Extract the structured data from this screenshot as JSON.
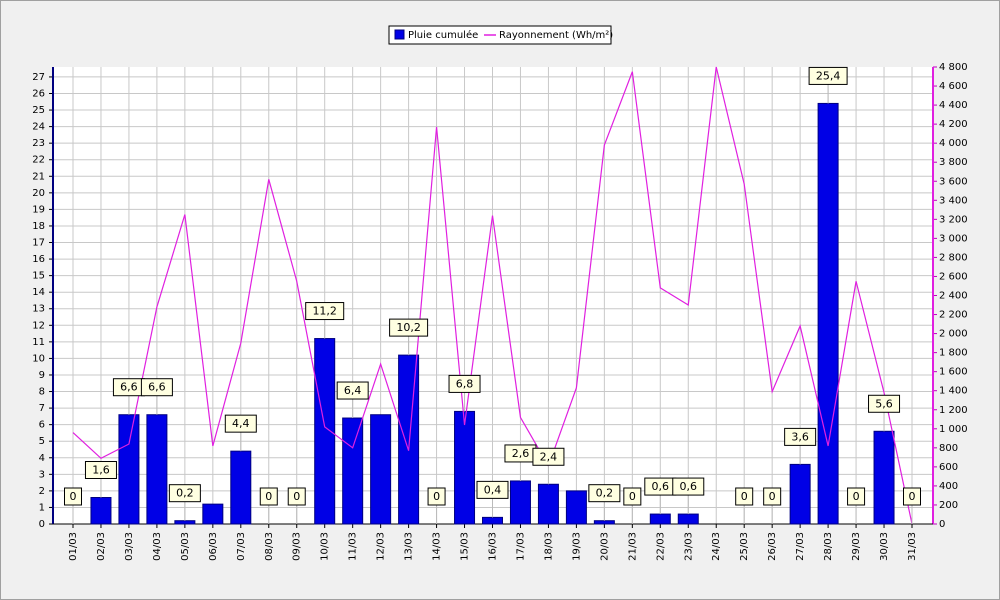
{
  "chart_data": {
    "type": "bar-line",
    "categories": [
      "01/03",
      "02/03",
      "03/03",
      "04/03",
      "05/03",
      "06/03",
      "07/03",
      "08/03",
      "09/03",
      "10/03",
      "11/03",
      "12/03",
      "13/03",
      "14/03",
      "15/03",
      "16/03",
      "17/03",
      "18/03",
      "19/03",
      "20/03",
      "21/03",
      "22/03",
      "23/03",
      "24/03",
      "25/03",
      "26/03",
      "27/03",
      "28/03",
      "29/03",
      "30/03",
      "31/03"
    ],
    "series": [
      {
        "name": "Pluie cumulée",
        "type": "bar",
        "color": "#0000e6",
        "values": [
          0,
          1.6,
          6.6,
          6.6,
          0.2,
          1.2,
          4.4,
          0,
          0,
          11.2,
          6.4,
          6.6,
          10.2,
          0,
          6.8,
          0.4,
          2.6,
          2.4,
          2,
          0.2,
          0,
          0.6,
          0.6,
          0,
          0,
          0,
          3.6,
          25.4,
          0,
          5.6,
          0
        ],
        "value_labels": [
          "0",
          "1,6",
          "6,6",
          "6,6",
          "0,2",
          null,
          "4,4",
          "0",
          "0",
          "11,2",
          "6,4",
          null,
          "10,2",
          "0",
          "6,8",
          "0,4",
          "2,6",
          "2,4",
          null,
          "0,2",
          "0",
          "0,6",
          "0,6",
          null,
          "0",
          "0",
          "3,6",
          "25,4",
          "0",
          "5,6",
          "0"
        ]
      },
      {
        "name": "Rayonnement (Wh/m²)",
        "type": "line",
        "axis": "y2",
        "color": "#e020e0",
        "values": [
          960,
          690,
          840,
          2280,
          3250,
          820,
          1900,
          3620,
          2550,
          1020,
          800,
          1680,
          770,
          4170,
          1040,
          3240,
          1120,
          610,
          1430,
          3980,
          4750,
          2480,
          2300,
          4800,
          3570,
          1390,
          2080,
          820,
          2550,
          1380,
          0
        ]
      }
    ],
    "ylim": [
      0,
      27.6
    ],
    "yticks": [
      0,
      1,
      2,
      3,
      4,
      5,
      6,
      7,
      8,
      9,
      10,
      11,
      12,
      13,
      14,
      15,
      16,
      17,
      18,
      19,
      20,
      21,
      22,
      23,
      24,
      25,
      26,
      27
    ],
    "y2lim": [
      0,
      4800
    ],
    "y2ticks": [
      0,
      200,
      400,
      600,
      800,
      {
        "value": 1000,
        "label": "1 000"
      },
      {
        "value": 1200,
        "label": "1 200"
      },
      {
        "value": 1400,
        "label": "1 400"
      },
      {
        "value": 1600,
        "label": "1 600"
      },
      {
        "value": 1800,
        "label": "1 800"
      },
      {
        "value": 2000,
        "label": "2 000"
      },
      {
        "value": 2200,
        "label": "2 200"
      },
      {
        "value": 2400,
        "label": "2 400"
      },
      {
        "value": 2600,
        "label": "2 600"
      },
      {
        "value": 2800,
        "label": "2 800"
      },
      {
        "value": 3000,
        "label": "3 000"
      },
      {
        "value": 3200,
        "label": "3 200"
      },
      {
        "value": 3400,
        "label": "3 400"
      },
      {
        "value": 3600,
        "label": "3 600"
      },
      {
        "value": 3800,
        "label": "3 800"
      },
      {
        "value": 4000,
        "label": "4 000"
      },
      {
        "value": 4200,
        "label": "4 200"
      },
      {
        "value": 4400,
        "label": "4 400"
      },
      {
        "value": 4600,
        "label": "4 600"
      },
      {
        "value": 4800,
        "label": "4 800"
      }
    ],
    "grid": true,
    "legend": "top"
  }
}
